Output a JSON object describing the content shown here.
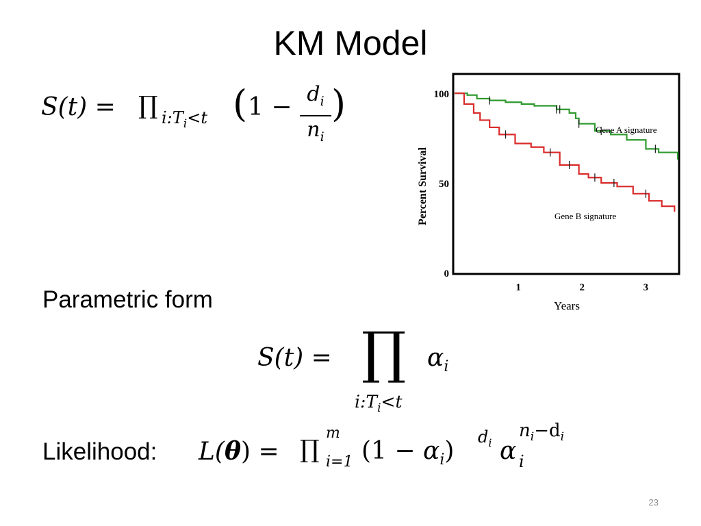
{
  "slide": {
    "title": "KM Model",
    "parametric_label": "Parametric form",
    "likelihood_label": "Likelihood:",
    "page_number": "23"
  },
  "eq1": {
    "lhs": "S(t) =",
    "prod": "∏",
    "sub_i": "i:T",
    "sub_i2": "i",
    "sub_lt": "<t",
    "lparen": "(",
    "one_minus": "1 −",
    "num": "d",
    "num_sub": "i",
    "den": "n",
    "den_sub": "i",
    "rparen": ")"
  },
  "eq2": {
    "lhs": "S(t) =",
    "prod": "∏",
    "alpha": "α",
    "alpha_sub": "i",
    "under": "i:T",
    "under_sub": "i",
    "under_lt": "<t"
  },
  "eq3": {
    "lhs_L": "L(",
    "theta": "θ",
    "lhs_end": ") =",
    "prod": "∏",
    "sup_m": "m",
    "sub_i1": "i=1",
    "open": "(1 − ",
    "alpha1": "α",
    "alpha1_sub": "i",
    "close": ")",
    "exp_d": "d",
    "exp_d_sub": "i",
    "alpha2": "α",
    "alpha2_sub": "i",
    "exp2": "n",
    "exp2_sub1": "i",
    "exp2_minus": "−d",
    "exp2_sub2": "i"
  },
  "chart_data": {
    "type": "line",
    "xlabel": "Years",
    "ylabel": "Percent Survival",
    "xlim": [
      0,
      3.5
    ],
    "ylim": [
      0,
      110
    ],
    "x_ticks": [
      1,
      2,
      3
    ],
    "y_ticks": [
      0,
      50,
      100
    ],
    "colors": {
      "gene_a": "#2e9a2e",
      "gene_b": "#d92b2b"
    },
    "series": [
      {
        "name": "Gene A signature",
        "x": [
          0,
          0.2,
          0.35,
          0.55,
          0.8,
          1.05,
          1.25,
          1.6,
          1.8,
          1.9,
          1.95,
          2.2,
          2.45,
          2.7,
          3.0,
          3.2,
          3.5
        ],
        "y": [
          100,
          99,
          97,
          96,
          95,
          94,
          93,
          91,
          89,
          86,
          83,
          79,
          77,
          74,
          69,
          67,
          63
        ],
        "censor_x": [
          0.55,
          1.6,
          1.65,
          1.95,
          2.3,
          3.15
        ]
      },
      {
        "name": "Gene B signature",
        "x": [
          0,
          0.15,
          0.3,
          0.4,
          0.55,
          0.7,
          0.95,
          1.2,
          1.4,
          1.65,
          1.95,
          2.1,
          2.3,
          2.55,
          2.8,
          3.05,
          3.25,
          3.45
        ],
        "y": [
          100,
          94,
          89,
          85,
          81,
          77,
          72,
          70,
          67,
          60,
          55,
          53,
          50,
          48,
          44,
          40,
          37,
          34
        ],
        "censor_x": [
          0.8,
          1.5,
          1.8,
          2.2,
          2.5,
          3.0
        ]
      }
    ]
  }
}
